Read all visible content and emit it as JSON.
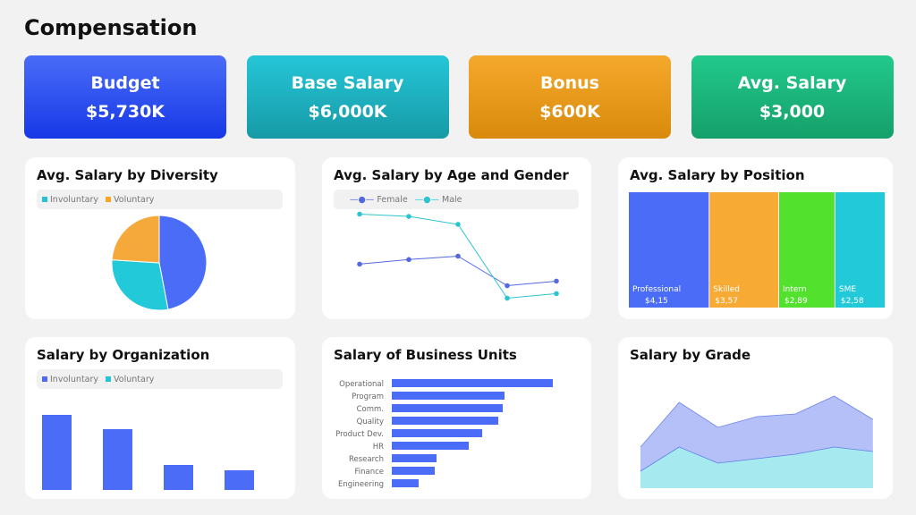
{
  "title": "Compensation",
  "kpis": [
    {
      "label": "Budget",
      "value": "$5,730K",
      "colors": [
        "#4a6cf8",
        "#1638e6"
      ]
    },
    {
      "label": "Base Salary",
      "value": "$6,000K",
      "colors": [
        "#25c6d8",
        "#179aa6"
      ]
    },
    {
      "label": "Bonus",
      "value": "$600K",
      "colors": [
        "#f5a92c",
        "#d98a0c"
      ]
    },
    {
      "label": "Avg. Salary",
      "value": "$3,000",
      "colors": [
        "#22c98c",
        "#15a06a"
      ]
    }
  ],
  "diversity": {
    "title": "Avg. Salary by Diversity",
    "legend": [
      {
        "name": "Involuntary",
        "color": "#22c3d6"
      },
      {
        "name": "Voluntary",
        "color": "#f5a623"
      }
    ],
    "chart_data": {
      "type": "pie",
      "values": [
        47,
        29,
        24
      ],
      "colors": [
        "#4a6cf7",
        "#22c9d9",
        "#f5a93a"
      ]
    }
  },
  "age_gender": {
    "title": "Avg. Salary by Age and Gender",
    "chart_data": {
      "type": "line",
      "x": [
        1,
        2,
        3,
        4,
        5
      ],
      "series": [
        {
          "name": "Female",
          "values": [
            43,
            47,
            50,
            24,
            28
          ],
          "color": "#5468e0"
        },
        {
          "name": "Male",
          "values": [
            87,
            85,
            78,
            13,
            17
          ],
          "color": "#2cc4d0"
        }
      ],
      "ylim": [
        0,
        100
      ]
    }
  },
  "position": {
    "title": "Avg. Salary by Position",
    "chart_data": {
      "type": "treemap",
      "items": [
        {
          "name": "Professional",
          "label": "$4,15",
          "value": 4.15,
          "color": "#4a6cf7"
        },
        {
          "name": "Skilled",
          "label": "$3,57",
          "value": 3.57,
          "color": "#f7aa34"
        },
        {
          "name": "Intern",
          "label": "$2,89",
          "value": 2.89,
          "color": "#52e12c"
        },
        {
          "name": "SME",
          "label": "$2,58",
          "value": 2.58,
          "color": "#22c9d9"
        }
      ]
    }
  },
  "organization": {
    "title": "Salary by Organization",
    "legend": [
      {
        "name": "Involuntary",
        "color": "#4a6cf7"
      },
      {
        "name": "Voluntary",
        "color": "#22c3d6"
      }
    ],
    "chart_data": {
      "type": "bar",
      "values": [
        84,
        68,
        28,
        22
      ],
      "ylim": [
        0,
        100
      ],
      "color": "#4a6cf7"
    }
  },
  "business_units": {
    "title": "Salary of Business Units",
    "chart_data": {
      "type": "bar",
      "orientation": "horizontal",
      "categories": [
        "Operational",
        "Program",
        "Comm.",
        "Quality",
        "Product Dev.",
        "HR",
        "Research",
        "Finance",
        "Engineering"
      ],
      "values": [
        180,
        126,
        124,
        119,
        101,
        86,
        50,
        48,
        30
      ],
      "xlim": [
        0,
        180
      ],
      "color": "#4a6cf7"
    }
  },
  "grade": {
    "title": "Salary by Grade",
    "chart_data": {
      "type": "area",
      "x": [
        1,
        2,
        3,
        4,
        5,
        6,
        7
      ],
      "series": [
        {
          "values": [
            46,
            96,
            68,
            80,
            83,
            103,
            77
          ],
          "color": "#b4c0f7",
          "line": "#6f83ee"
        },
        {
          "values": [
            19,
            46,
            28,
            33,
            38,
            46,
            41
          ],
          "color": "#a6e9ef",
          "line": "#5f7fe8"
        }
      ],
      "ylim": [
        0,
        110
      ]
    }
  }
}
